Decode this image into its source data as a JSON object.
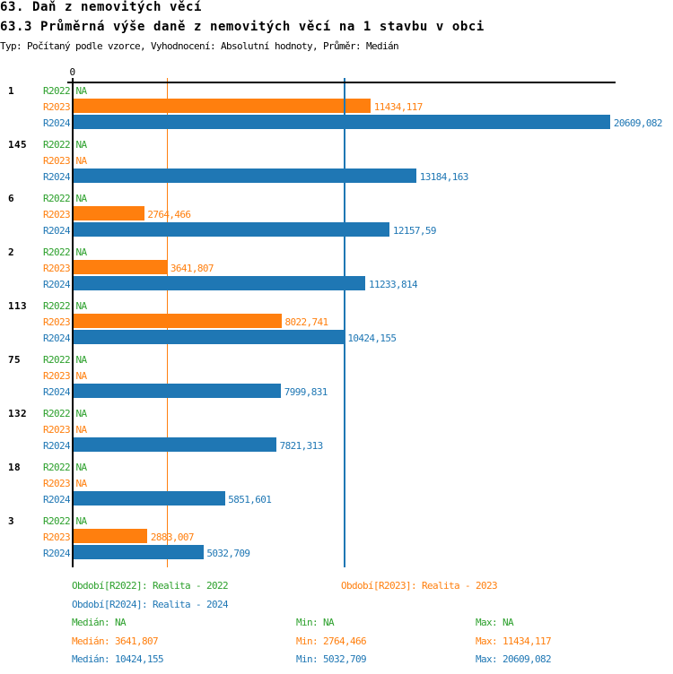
{
  "title": "63. Daň z nemovitých věcí",
  "subtitle": "63.3 Průměrná výše daně z nemovitých věcí na 1 stavbu v obci",
  "meta_line": "Typ: Počítaný podle vzorce, Vyhodnocení: Absolutní hodnoty, Průměr: Medián",
  "colors": {
    "r2022": "#2ca02c",
    "r2023": "#ff7f0e",
    "r2024": "#1f77b4",
    "axis": "#000000",
    "background": "#ffffff"
  },
  "chart_data": {
    "type": "bar",
    "orientation": "horizontal",
    "title": "63.3 Průměrná výše daně z nemovitých věcí na 1 stavbu v obci",
    "xlabel": "",
    "ylabel": "",
    "xlim": [
      0,
      20609.082
    ],
    "axis_zero_label": "0",
    "grid": false,
    "series_names": [
      "R2022",
      "R2023",
      "R2024"
    ],
    "na_text": "NA",
    "groups": [
      {
        "label": "1",
        "values": [
          null,
          11434.117,
          20609.082
        ],
        "value_labels": [
          "NA",
          "11434,117",
          "20609,082"
        ]
      },
      {
        "label": "145",
        "values": [
          null,
          null,
          13184.163
        ],
        "value_labels": [
          "NA",
          "NA",
          "13184,163"
        ]
      },
      {
        "label": "6",
        "values": [
          null,
          2764.466,
          12157.59
        ],
        "value_labels": [
          "NA",
          "2764,466",
          "12157,59"
        ]
      },
      {
        "label": "2",
        "values": [
          null,
          3641.807,
          11233.814
        ],
        "value_labels": [
          "NA",
          "3641,807",
          "11233,814"
        ]
      },
      {
        "label": "113",
        "values": [
          null,
          8022.741,
          10424.155
        ],
        "value_labels": [
          "NA",
          "8022,741",
          "10424,155"
        ]
      },
      {
        "label": "75",
        "values": [
          null,
          null,
          7999.831
        ],
        "value_labels": [
          "NA",
          "NA",
          "7999,831"
        ]
      },
      {
        "label": "132",
        "values": [
          null,
          null,
          7821.313
        ],
        "value_labels": [
          "NA",
          "NA",
          "7821,313"
        ]
      },
      {
        "label": "18",
        "values": [
          null,
          null,
          5851.601
        ],
        "value_labels": [
          "NA",
          "NA",
          "5851,601"
        ]
      },
      {
        "label": "3",
        "values": [
          null,
          2883.007,
          5032.709
        ],
        "value_labels": [
          "NA",
          "2883,007",
          "5032,709"
        ]
      }
    ],
    "median_lines": [
      {
        "series": "R2022",
        "value": null
      },
      {
        "series": "R2023",
        "value": 3641.807
      },
      {
        "series": "R2024",
        "value": 10424.155
      }
    ]
  },
  "legend": {
    "items": [
      {
        "series": "R2022",
        "text": "Období[R2022]: Realita - 2022"
      },
      {
        "series": "R2023",
        "text": "Období[R2023]: Realita - 2023"
      },
      {
        "series": "R2024",
        "text": "Období[R2024]: Realita - 2024"
      }
    ]
  },
  "stats": {
    "rows": [
      {
        "series": "R2022",
        "median": "Medián: NA",
        "min": "Min: NA",
        "max": "Max: NA"
      },
      {
        "series": "R2023",
        "median": "Medián: 3641,807",
        "min": "Min: 2764,466",
        "max": "Max: 11434,117"
      },
      {
        "series": "R2024",
        "median": "Medián: 10424,155",
        "min": "Min: 5032,709",
        "max": "Max: 20609,082"
      }
    ]
  }
}
